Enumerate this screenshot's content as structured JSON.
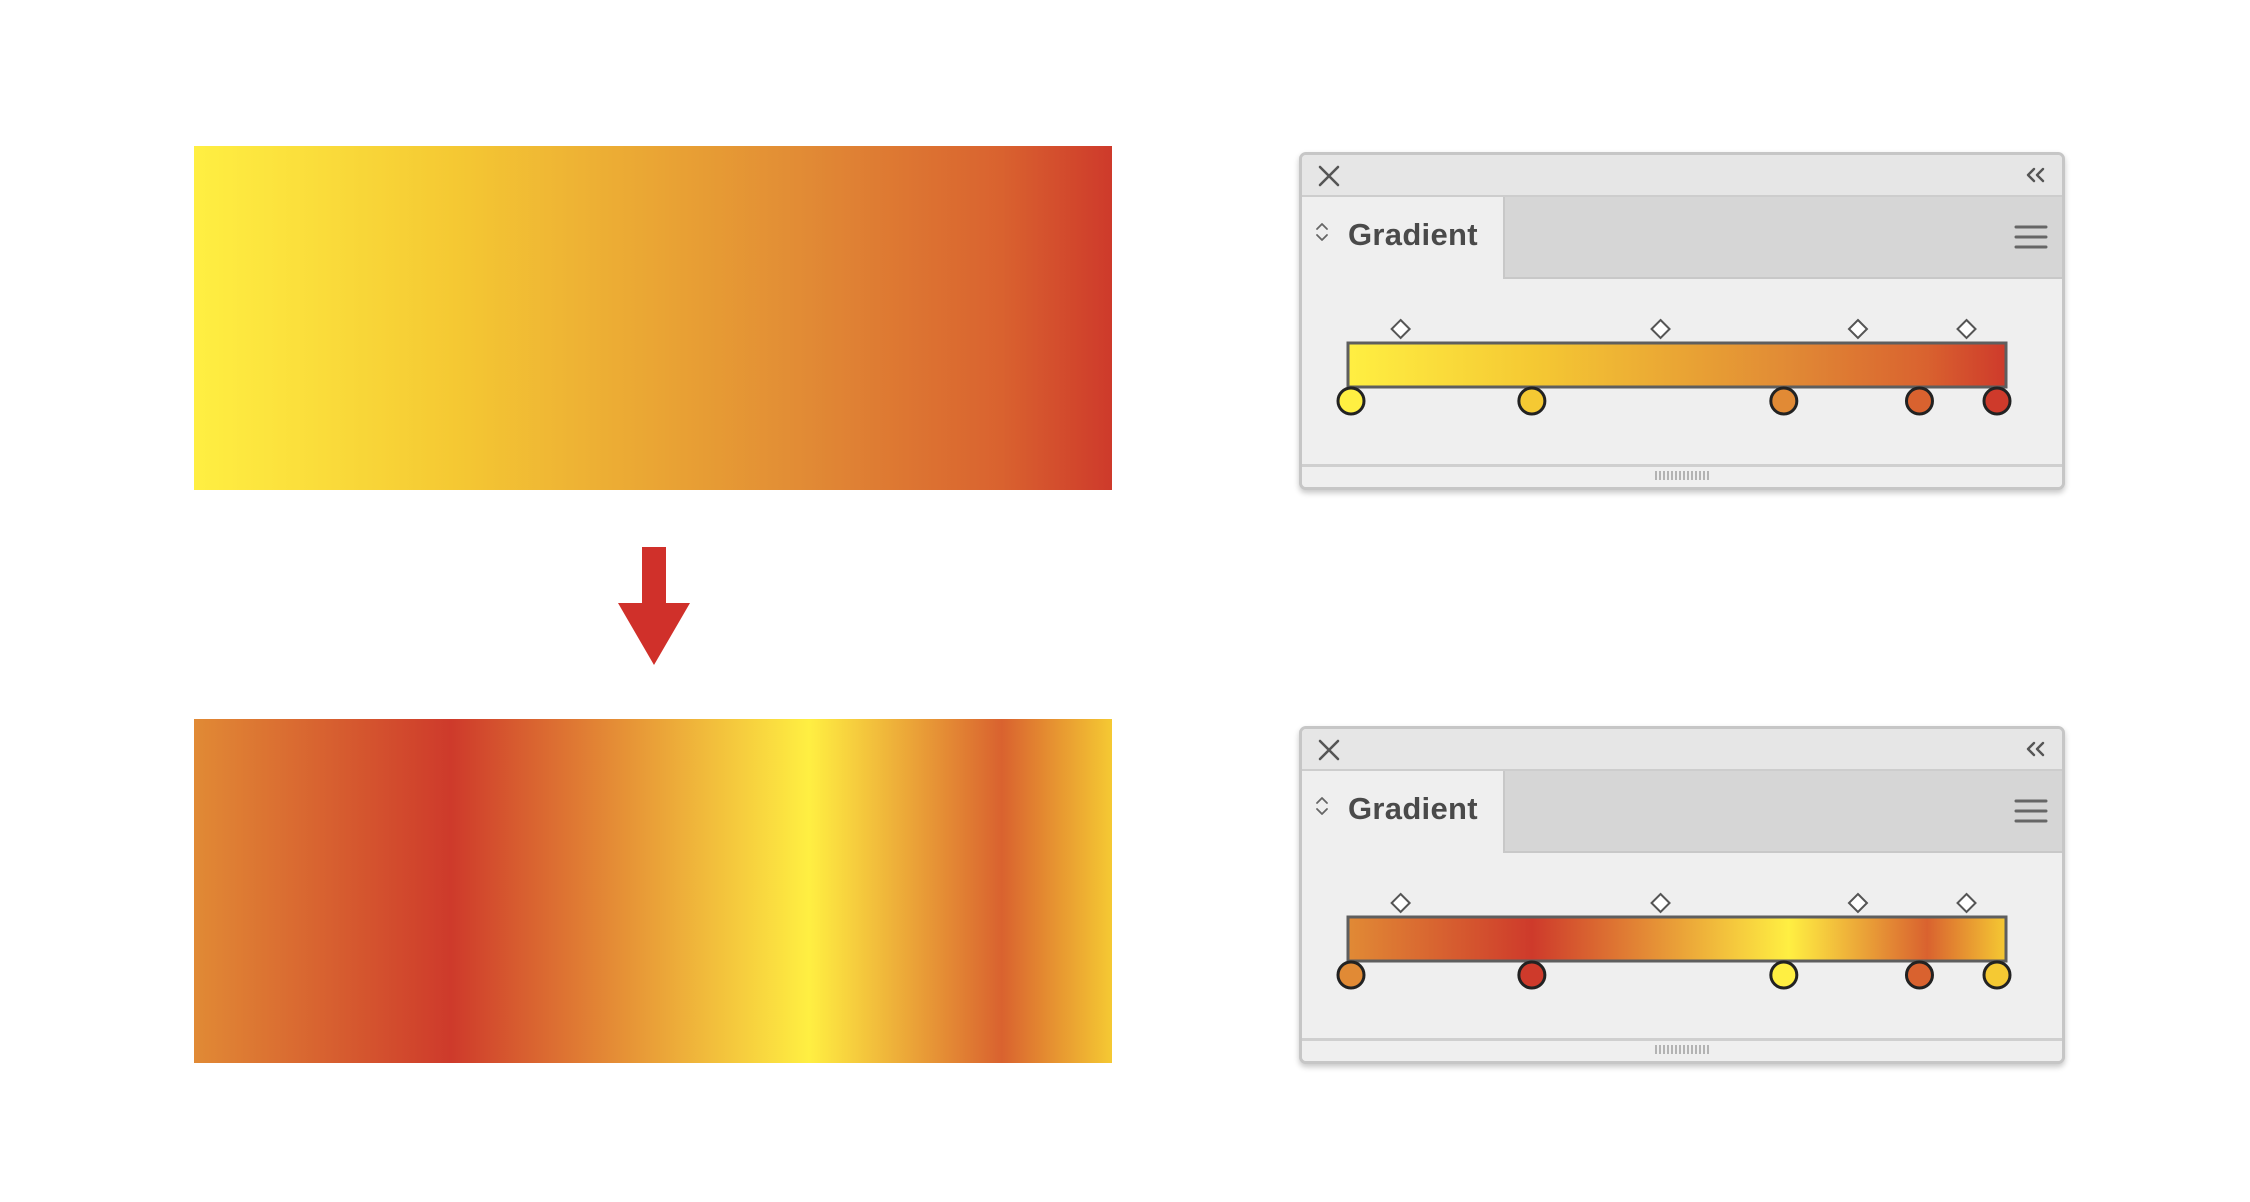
{
  "colors": {
    "yellow": "#FFEF42",
    "gold": "#F5C933",
    "orange": "#E18A35",
    "dark_orange": "#D9622F",
    "red": "#CE3A2B",
    "arrow": "#D0302A"
  },
  "swatch_top": {
    "stops": [
      {
        "color": "#FFEF42",
        "offset": 0
      },
      {
        "color": "#F5C933",
        "offset": 0.28
      },
      {
        "color": "#E18A35",
        "offset": 0.67
      },
      {
        "color": "#D9622F",
        "offset": 0.88
      },
      {
        "color": "#CE3A2B",
        "offset": 1
      }
    ]
  },
  "swatch_bottom": {
    "stops": [
      {
        "color": "#E18A35",
        "offset": 0
      },
      {
        "color": "#CE3A2B",
        "offset": 0.28
      },
      {
        "color": "#FFEF42",
        "offset": 0.67
      },
      {
        "color": "#D9622F",
        "offset": 0.88
      },
      {
        "color": "#F5C933",
        "offset": 1
      }
    ]
  },
  "arrow": {
    "icon": "down-arrow-icon",
    "direction": "down"
  },
  "panels": [
    {
      "title": "Gradient",
      "icons": {
        "close": "close-icon",
        "collapse": "double-chevron-left-icon",
        "tab_toggle": "up-down-chevron-icon",
        "menu": "hamburger-menu-icon",
        "grip": "resize-grip-icon"
      },
      "color_stops": [
        {
          "color": "#FFEF42",
          "location": 0
        },
        {
          "color": "#F5C933",
          "location": 0.28
        },
        {
          "color": "#E18A35",
          "location": 0.67
        },
        {
          "color": "#D9622F",
          "location": 0.88
        },
        {
          "color": "#CE3A2B",
          "location": 1
        }
      ],
      "midpoints": [
        0.08,
        0.475,
        0.775,
        0.94
      ]
    },
    {
      "title": "Gradient",
      "icons": {
        "close": "close-icon",
        "collapse": "double-chevron-left-icon",
        "tab_toggle": "up-down-chevron-icon",
        "menu": "hamburger-menu-icon",
        "grip": "resize-grip-icon"
      },
      "color_stops": [
        {
          "color": "#E18A35",
          "location": 0
        },
        {
          "color": "#CE3A2B",
          "location": 0.28
        },
        {
          "color": "#FFEF42",
          "location": 0.67
        },
        {
          "color": "#D9622F",
          "location": 0.88
        },
        {
          "color": "#F5C933",
          "location": 1
        }
      ],
      "midpoints": [
        0.08,
        0.475,
        0.775,
        0.94
      ]
    }
  ]
}
